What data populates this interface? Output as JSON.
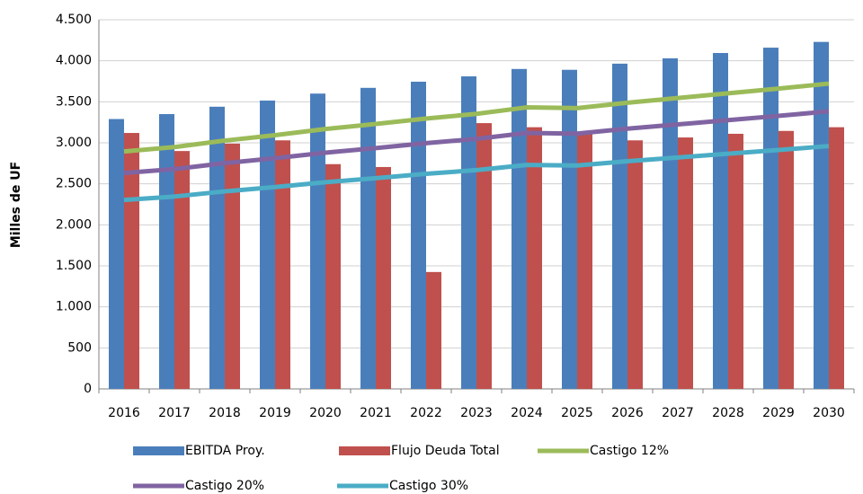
{
  "chart_data": {
    "type": "bar-line",
    "y_label": "Milles de UF",
    "categories": [
      "2016",
      "2017",
      "2018",
      "2019",
      "2020",
      "2021",
      "2022",
      "2023",
      "2024",
      "2025",
      "2026",
      "2027",
      "2028",
      "2029",
      "2030"
    ],
    "series": [
      {
        "name": "EBITDA Proy.",
        "kind": "bar",
        "color": "#4a7ebb",
        "values": [
          3290,
          3350,
          3440,
          3515,
          3600,
          3670,
          3745,
          3810,
          3900,
          3890,
          3965,
          4030,
          4095,
          4160,
          4230
        ]
      },
      {
        "name": "Flujo Deuda Total",
        "kind": "bar",
        "color": "#c0504d",
        "values": [
          3120,
          2900,
          2990,
          3030,
          2740,
          2705,
          1425,
          3240,
          3190,
          3110,
          3030,
          3065,
          3110,
          3145,
          3190
        ]
      },
      {
        "name": "Castigo 12%",
        "kind": "line",
        "color": "#9bbb59",
        "values": [
          2895,
          2948,
          3027,
          3093,
          3168,
          3230,
          3296,
          3353,
          3432,
          3423,
          3489,
          3546,
          3604,
          3661,
          3722
        ]
      },
      {
        "name": "Castigo 20%",
        "kind": "line",
        "color": "#8064a2",
        "values": [
          2632,
          2680,
          2752,
          2812,
          2880,
          2936,
          2996,
          3048,
          3120,
          3112,
          3172,
          3224,
          3276,
          3328,
          3384
        ]
      },
      {
        "name": "Castigo 30%",
        "kind": "line",
        "color": "#4bacc6",
        "values": [
          2303,
          2345,
          2408,
          2461,
          2520,
          2569,
          2622,
          2667,
          2730,
          2723,
          2776,
          2821,
          2867,
          2912,
          2961
        ]
      }
    ],
    "ylim": [
      0,
      4500
    ],
    "yticks": [
      0,
      {
        "value": 500,
        "label": "500"
      },
      {
        "value": 1000,
        "label": "1.000"
      },
      {
        "value": 1500,
        "label": "1.500"
      },
      {
        "value": 2000,
        "label": "2.000"
      },
      {
        "value": 2500,
        "label": "2.500"
      },
      {
        "value": 3000,
        "label": "3.000"
      },
      {
        "value": 3500,
        "label": "3.500"
      },
      {
        "value": 4000,
        "label": "4.000"
      },
      {
        "value": 4500,
        "label": "4.500"
      }
    ],
    "grid": true,
    "legend": "bottom"
  }
}
